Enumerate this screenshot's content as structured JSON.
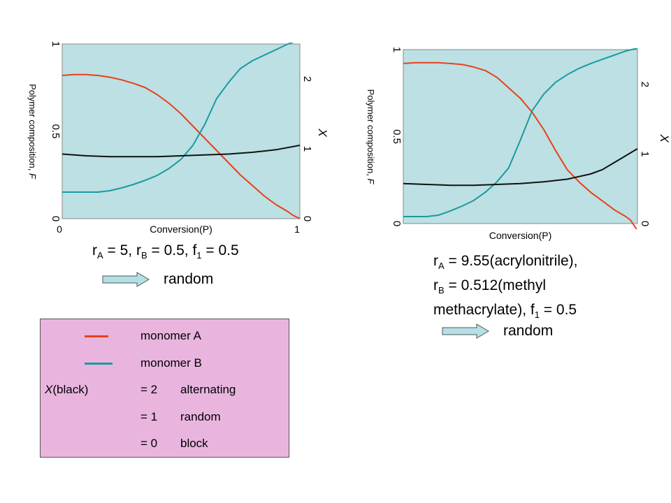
{
  "chart_data": [
    {
      "type": "line",
      "title": "",
      "xlabel": "Conversion(P)",
      "ylabel": "Polymer composition, F",
      "y2label": "X",
      "xlim": [
        0,
        1
      ],
      "ylim": [
        0,
        1
      ],
      "y2lim": [
        0,
        2.5
      ],
      "x_ticks": [
        "0",
        "1"
      ],
      "y_ticks": [
        {
          "v": 0,
          "label": "0"
        },
        {
          "v": 0.5,
          "label": "0.5"
        },
        {
          "v": 1,
          "label": "1"
        }
      ],
      "y2_ticks": [
        {
          "v": 0,
          "label": "0"
        },
        {
          "v": 1,
          "label": "1"
        },
        {
          "v": 2,
          "label": "2"
        }
      ],
      "background": "#bce0e3",
      "series": [
        {
          "color": "#e8401c",
          "axis": "left",
          "x": [
            0,
            0.05,
            0.1,
            0.15,
            0.2,
            0.25,
            0.3,
            0.35,
            0.4,
            0.45,
            0.5,
            0.55,
            0.6,
            0.65,
            0.7,
            0.75,
            0.8,
            0.85,
            0.9,
            0.95,
            0.97,
            1.0
          ],
          "y": [
            0.82,
            0.825,
            0.825,
            0.82,
            0.81,
            0.795,
            0.775,
            0.75,
            0.71,
            0.66,
            0.6,
            0.53,
            0.46,
            0.39,
            0.32,
            0.25,
            0.19,
            0.13,
            0.08,
            0.04,
            0.02,
            0.0
          ]
        },
        {
          "color": "#1a9aa0",
          "axis": "right",
          "x": [
            0,
            0.05,
            0.1,
            0.15,
            0.2,
            0.25,
            0.3,
            0.35,
            0.4,
            0.45,
            0.5,
            0.55,
            0.6,
            0.65,
            0.7,
            0.75,
            0.8,
            0.85,
            0.9,
            0.95,
            1.0
          ],
          "y": [
            0.38,
            0.38,
            0.38,
            0.38,
            0.4,
            0.44,
            0.49,
            0.55,
            0.62,
            0.72,
            0.85,
            1.05,
            1.35,
            1.72,
            1.95,
            2.15,
            2.26,
            2.34,
            2.42,
            2.5,
            2.56
          ]
        },
        {
          "color": "#111111",
          "axis": "left",
          "x": [
            0,
            0.1,
            0.2,
            0.3,
            0.4,
            0.5,
            0.6,
            0.7,
            0.8,
            0.9,
            1.0
          ],
          "y": [
            0.37,
            0.36,
            0.355,
            0.355,
            0.355,
            0.36,
            0.365,
            0.37,
            0.38,
            0.395,
            0.42
          ]
        }
      ]
    },
    {
      "type": "line",
      "title": "",
      "xlabel": "Conversion(P)",
      "ylabel": "Polymer composition, F",
      "y2label": "X",
      "xlim": [
        0,
        1
      ],
      "ylim": [
        0,
        1
      ],
      "y2lim": [
        0,
        2.5
      ],
      "x_ticks": [],
      "y_ticks": [
        {
          "v": 0,
          "label": "0"
        },
        {
          "v": 0.5,
          "label": "0.5"
        },
        {
          "v": 1,
          "label": "1"
        }
      ],
      "y2_ticks": [
        {
          "v": 0,
          "label": "0"
        },
        {
          "v": 1,
          "label": "1"
        },
        {
          "v": 2,
          "label": "2"
        }
      ],
      "background": "#bce0e3",
      "series": [
        {
          "color": "#e8401c",
          "axis": "left",
          "x": [
            0,
            0.05,
            0.1,
            0.15,
            0.2,
            0.25,
            0.3,
            0.35,
            0.4,
            0.45,
            0.5,
            0.55,
            0.6,
            0.65,
            0.7,
            0.75,
            0.8,
            0.85,
            0.9,
            0.95,
            0.97,
            1.0
          ],
          "y": [
            0.92,
            0.925,
            0.925,
            0.925,
            0.92,
            0.915,
            0.9,
            0.88,
            0.84,
            0.78,
            0.72,
            0.64,
            0.54,
            0.42,
            0.31,
            0.24,
            0.18,
            0.13,
            0.08,
            0.04,
            0.02,
            -0.04
          ]
        },
        {
          "color": "#1a9aa0",
          "axis": "right",
          "x": [
            0,
            0.05,
            0.1,
            0.15,
            0.2,
            0.25,
            0.3,
            0.35,
            0.4,
            0.45,
            0.5,
            0.55,
            0.6,
            0.65,
            0.7,
            0.75,
            0.8,
            0.85,
            0.9,
            0.95,
            1.0
          ],
          "y": [
            0.1,
            0.1,
            0.1,
            0.12,
            0.18,
            0.25,
            0.33,
            0.45,
            0.6,
            0.8,
            1.2,
            1.62,
            1.86,
            2.03,
            2.14,
            2.23,
            2.3,
            2.36,
            2.42,
            2.48,
            2.52
          ]
        },
        {
          "color": "#111111",
          "axis": "left",
          "x": [
            0,
            0.1,
            0.2,
            0.3,
            0.4,
            0.5,
            0.6,
            0.7,
            0.8,
            0.85,
            0.9,
            0.95,
            1.0
          ],
          "y": [
            0.23,
            0.225,
            0.22,
            0.22,
            0.225,
            0.23,
            0.24,
            0.255,
            0.285,
            0.31,
            0.35,
            0.39,
            0.43
          ]
        }
      ]
    }
  ],
  "captions": {
    "left": {
      "ra": "5",
      "rb": "0.5",
      "f1": "0.5"
    },
    "right": {
      "ra": "9.55(acrylonitrile),",
      "rb_line": "0.512(methyl",
      "line3": "methacrylate), f",
      "f1": "0.5"
    },
    "label_r": "r",
    "sub_a": "A",
    "sub_b": "B",
    "sub_1": "1",
    "f_label": "f",
    "eq": " = "
  },
  "arrows": {
    "label": "random",
    "fill": "#b4dfe6"
  },
  "legend": {
    "background": "#e9b5df",
    "items": [
      {
        "label": "monomer A",
        "color": "#e8401c"
      },
      {
        "label": "monomer B",
        "color": "#1a9aa0"
      }
    ],
    "x_label": "X",
    "x_suffix": " (black)",
    "rows": [
      {
        "value": "= 2",
        "desc": "alternating"
      },
      {
        "value": "= 1",
        "desc": "random"
      },
      {
        "value": "= 0",
        "desc": "block"
      }
    ]
  }
}
